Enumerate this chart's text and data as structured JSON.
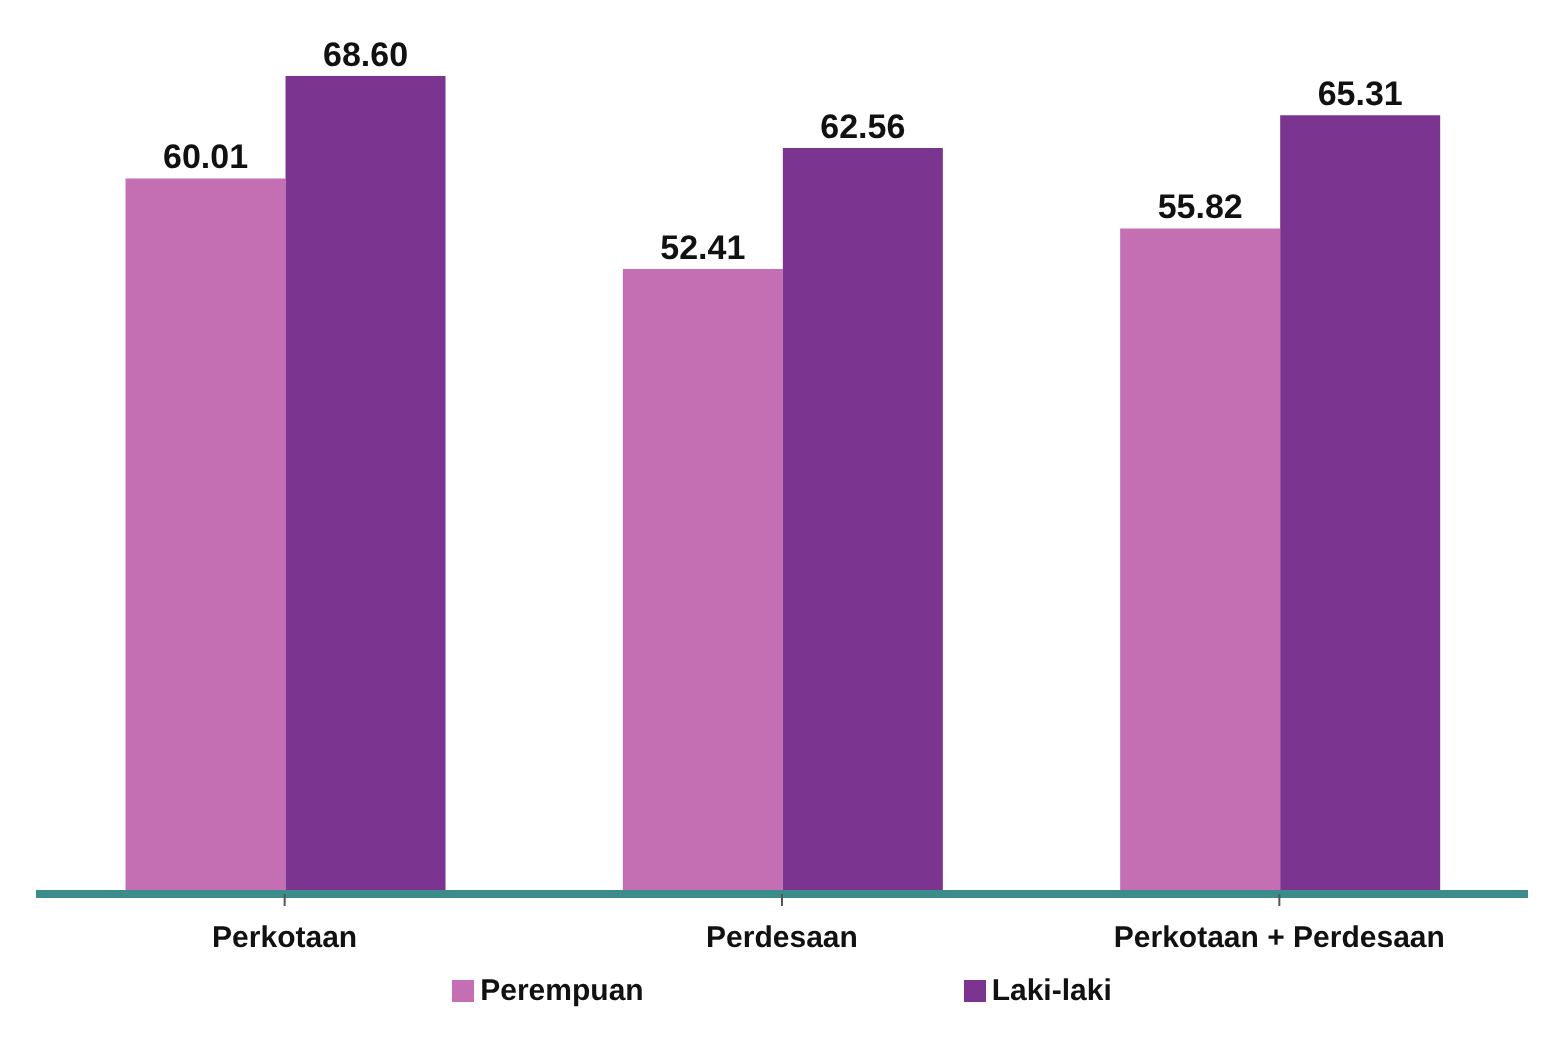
{
  "chart_data": {
    "type": "bar",
    "categories": [
      "Perkotaan",
      "Perdesaan",
      "Perkotaan + Perdesaan"
    ],
    "series": [
      {
        "name": "Perempuan",
        "color": "#c46fb4",
        "values": [
          60.01,
          52.41,
          55.82
        ],
        "value_labels": [
          "60.01",
          "52.41",
          "55.82"
        ]
      },
      {
        "name": "Laki-laki",
        "color": "#7b3590",
        "values": [
          68.6,
          62.56,
          65.31
        ],
        "value_labels": [
          "68.60",
          "62.56",
          "65.31"
        ]
      }
    ],
    "legend": "bottom",
    "grid": false
  }
}
